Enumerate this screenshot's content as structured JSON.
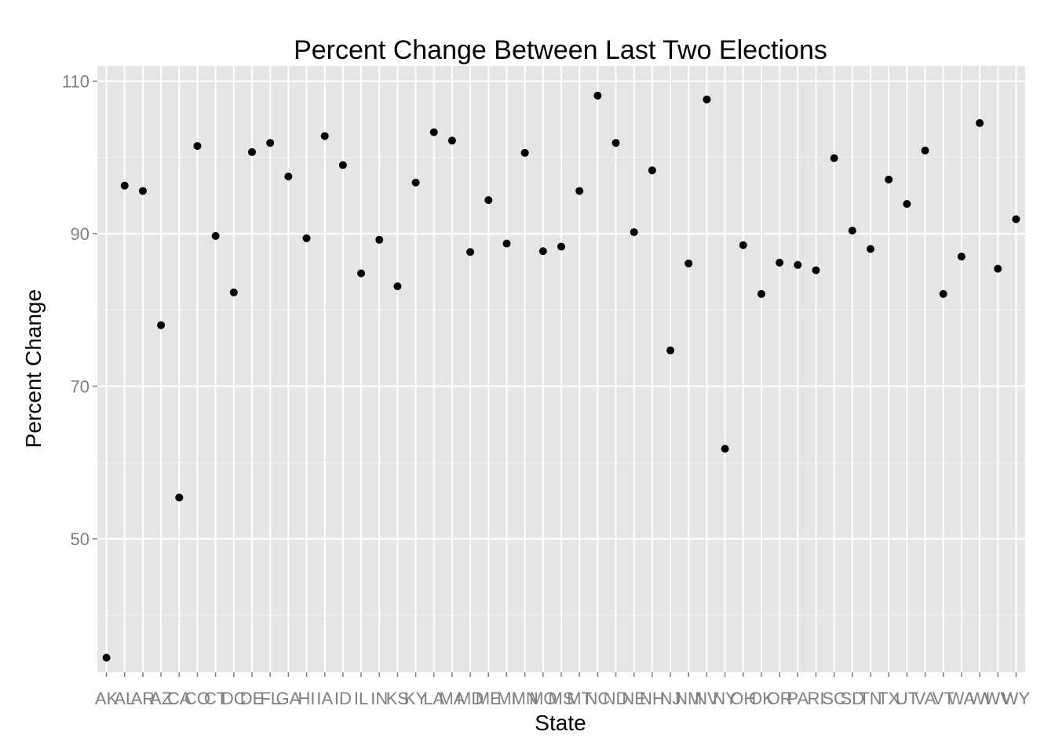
{
  "chart_data": {
    "type": "scatter",
    "title": "Percent Change Between Last Two Elections",
    "xlabel": "State",
    "ylabel": "Percent Change",
    "categories": [
      "AK",
      "AL",
      "AR",
      "AZ",
      "CA",
      "CO",
      "CT",
      "DC",
      "DE",
      "FL",
      "GA",
      "HI",
      "IA",
      "ID",
      "IL",
      "IN",
      "KS",
      "KY",
      "LA",
      "MA",
      "MD",
      "ME",
      "MI",
      "MN",
      "MO",
      "MS",
      "MT",
      "NC",
      "ND",
      "NE",
      "NH",
      "NJ",
      "NM",
      "NV",
      "NY",
      "OH",
      "OK",
      "OR",
      "PA",
      "RI",
      "SC",
      "SD",
      "TN",
      "TX",
      "UT",
      "VA",
      "VT",
      "WA",
      "WI",
      "WV",
      "WY"
    ],
    "x": [
      1,
      2,
      3,
      4,
      5,
      6,
      7,
      8,
      9,
      10,
      11,
      12,
      13,
      14,
      15,
      16,
      17,
      18,
      19,
      20,
      21,
      22,
      23,
      24,
      25,
      26,
      27,
      28,
      29,
      30,
      31,
      32,
      33,
      34,
      35,
      36,
      37,
      38,
      39,
      40,
      41,
      42,
      43,
      44,
      45,
      46,
      47,
      48,
      49,
      50,
      51
    ],
    "xlim": [
      0.5,
      51.5
    ],
    "y": [
      34.4,
      96.3,
      95.6,
      78.0,
      55.4,
      101.5,
      89.7,
      82.3,
      100.7,
      101.9,
      97.5,
      89.4,
      102.8,
      99.0,
      84.8,
      89.2,
      83.1,
      96.7,
      103.3,
      102.2,
      87.6,
      94.4,
      88.7,
      100.6,
      87.7,
      88.3,
      95.6,
      108.1,
      101.9,
      90.2,
      98.3,
      74.7,
      86.1,
      107.6,
      61.8,
      88.5,
      82.1,
      86.2,
      85.9,
      85.2,
      99.9,
      90.4,
      88.0,
      97.1,
      93.9,
      100.9,
      82.1,
      87.0,
      104.5,
      85.4,
      91.9
    ],
    "ylim": [
      32.5,
      112
    ],
    "yticks": [
      50,
      70,
      90,
      110
    ],
    "grid": true,
    "colors": {
      "panel": "#e5e5e5",
      "grid_major": "#ffffff",
      "grid_minor": "#f2f2f2",
      "point": "#000000",
      "tick": "#7f7f7f"
    }
  }
}
